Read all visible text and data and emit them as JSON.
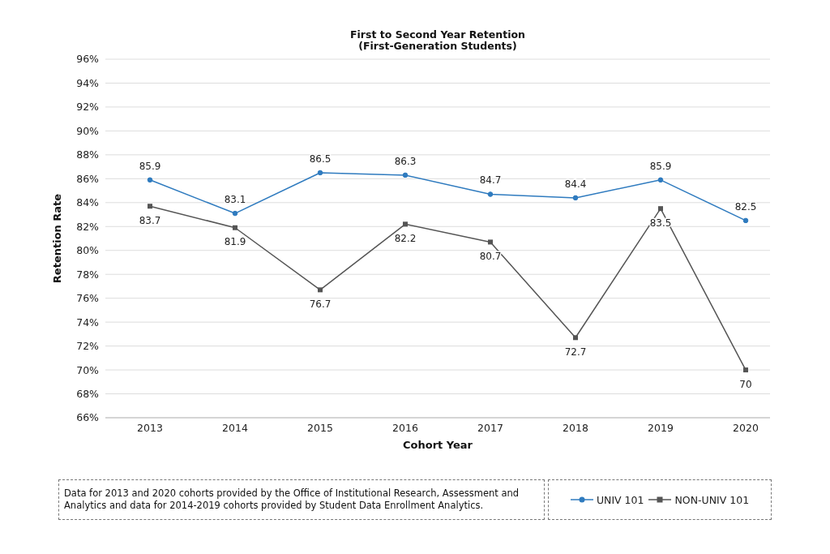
{
  "chart_data": {
    "type": "line",
    "title": "First to Second Year Retention",
    "subtitle": "(First-Generation Students)",
    "xlabel": "Cohort Year",
    "ylabel": "Retention Rate",
    "categories": [
      "2013",
      "2014",
      "2015",
      "2016",
      "2017",
      "2018",
      "2019",
      "2020"
    ],
    "series": [
      {
        "name": "UNIV 101",
        "color": "#2f7bbf",
        "marker": "circle",
        "values": [
          85.9,
          83.1,
          86.5,
          86.3,
          84.7,
          84.4,
          85.9,
          82.5
        ]
      },
      {
        "name": "NON-UNIV 101",
        "color": "#555555",
        "marker": "square",
        "values": [
          83.7,
          81.9,
          76.7,
          82.2,
          80.7,
          72.7,
          83.5,
          70
        ]
      }
    ],
    "ylim": [
      66,
      96
    ],
    "yticks": [
      {
        "value": 66,
        "label": "66%"
      },
      {
        "value": 68,
        "label": "68%"
      },
      {
        "value": 70,
        "label": "70%"
      },
      {
        "value": 72,
        "label": "72%"
      },
      {
        "value": 74,
        "label": "74%"
      },
      {
        "value": 76,
        "label": "76%"
      },
      {
        "value": 78,
        "label": "78%"
      },
      {
        "value": 80,
        "label": "80%"
      },
      {
        "value": 82,
        "label": "82%"
      },
      {
        "value": 84,
        "label": "84%"
      },
      {
        "value": 86,
        "label": "86%"
      },
      {
        "value": 88,
        "label": "88%"
      },
      {
        "value": 90,
        "label": "90%"
      },
      {
        "value": 92,
        "label": "92%"
      },
      {
        "value": 94,
        "label": "94%"
      },
      {
        "value": 96,
        "label": "96%"
      }
    ],
    "grid": "y",
    "legend": "bottom right",
    "data_labels": true,
    "line_style": "solid",
    "annotations": [
      "Data for 2013 and 2020 cohorts provided by the Office of Institutional Research, Assessment and Analytics and data for 2014-2019 cohorts provided by Student Data Enrollment Analytics."
    ]
  }
}
